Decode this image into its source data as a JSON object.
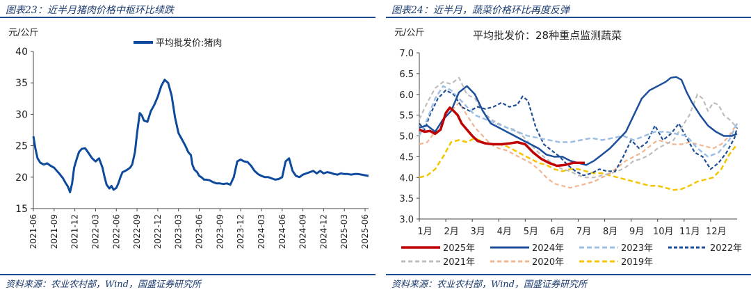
{
  "left_panel": {
    "figure_title": "图表23：近半月猪肉价格中枢环比续跌",
    "source": "资料来源：农业农村部，Wind，国盛证券研究所"
  },
  "right_panel": {
    "figure_title": "图表24：近半月，蔬菜价格环比再度反弹",
    "source": "资料来源：农业农村部，Wind，国盛证券研究所"
  },
  "colors": {
    "rule": "#1a4c92",
    "left_line": "#0d4a9c",
    "2025年": "#c00000",
    "2024年": "#1c4e9c",
    "2023年": "#9dbfe3",
    "2022年": "#1f4e96",
    "2021年": "#bdbdbd",
    "2020年": "#f2b48f",
    "2019年": "#f5c400"
  },
  "chart_data": [
    {
      "type": "line",
      "title": "",
      "unit_label": "元/公斤",
      "xlabel": "",
      "ylabel": "",
      "ylim": [
        15,
        40
      ],
      "y_ticks": [
        15,
        20,
        25,
        30,
        35,
        40
      ],
      "x_ticks": [
        "2021-06",
        "2021-09",
        "2021-12",
        "2022-03",
        "2022-06",
        "2022-09",
        "2022-12",
        "2023-03",
        "2023-06",
        "2023-09",
        "2023-12",
        "2024-03",
        "2024-06",
        "2024-09",
        "2024-12",
        "2025-03",
        "2025-06"
      ],
      "legend_position": "top-center",
      "series": [
        {
          "name": "平均批发价:猪肉",
          "x": [
            0,
            0.3,
            0.6,
            1,
            1.5,
            2,
            2.5,
            3,
            3.4,
            3.8,
            4.3,
            4.7,
            5,
            5.3,
            5.6,
            5.9,
            6.3,
            6.6,
            7,
            7.5,
            8,
            8.5,
            9,
            9.5,
            10,
            10.3,
            10.6,
            11,
            11.3,
            11.6,
            12,
            12.3,
            12.6,
            12.9,
            13.3,
            13.6,
            14,
            14.3,
            14.7,
            15,
            15.4,
            15.7,
            16,
            16.5,
            17,
            17.5,
            18,
            18.5,
            19,
            19.5,
            20,
            20.5,
            21,
            21.5,
            22,
            22.4,
            22.8,
            23,
            23.3,
            23.7,
            24,
            24.3,
            24.7,
            25,
            25.5,
            26,
            26.5,
            27,
            27.5,
            28,
            28.5,
            29,
            29.5,
            30,
            30.5,
            31,
            31.5,
            32,
            32.5,
            33,
            33.5,
            34,
            34.5,
            35,
            35.5,
            36,
            36.5,
            37,
            37.5,
            38,
            38.5,
            39,
            39.5,
            40,
            40.5,
            41,
            41.5,
            42,
            42.5,
            43,
            43.5,
            44,
            44.5,
            45,
            45.5,
            46,
            46.5,
            47,
            47.5,
            48,
            48.5
          ],
          "values": [
            26.5,
            24.5,
            23.0,
            22.3,
            22.0,
            22.2,
            21.8,
            21.5,
            21.0,
            20.5,
            19.8,
            19.0,
            18.5,
            17.6,
            19.0,
            21.5,
            23.0,
            24.0,
            24.5,
            24.6,
            23.8,
            23.0,
            22.5,
            23.0,
            21.5,
            20.0,
            18.8,
            18.2,
            18.6,
            18.0,
            18.3,
            19.0,
            20.0,
            20.8,
            21.0,
            21.2,
            21.5,
            22.0,
            24.0,
            27.0,
            30.2,
            29.8,
            29.0,
            28.8,
            30.5,
            31.5,
            32.8,
            34.5,
            35.5,
            35.0,
            33.0,
            29.5,
            27.0,
            26.0,
            25.0,
            24.0,
            23.5,
            22.0,
            21.2,
            20.8,
            20.2,
            20.0,
            19.6,
            19.6,
            19.5,
            19.2,
            19.0,
            19.0,
            18.9,
            19.0,
            18.8,
            20.0,
            22.5,
            22.8,
            22.5,
            22.4,
            21.8,
            21.0,
            20.5,
            20.2,
            20.0,
            20.0,
            19.8,
            19.6,
            19.7,
            20.0,
            22.5,
            23.0,
            21.0,
            20.2,
            20.0,
            20.4,
            20.6,
            20.8,
            21.0,
            20.6,
            21.0,
            20.6,
            20.8,
            20.7,
            20.5,
            20.4,
            20.6,
            20.5,
            20.5,
            20.4,
            20.5,
            20.5,
            20.4,
            20.3,
            20.2
          ]
        }
      ]
    },
    {
      "type": "line",
      "title": "平均批发价：28种重点监测蔬菜",
      "unit_label": "元/公斤",
      "xlabel": "",
      "ylabel": "",
      "ylim": [
        3.0,
        7.0
      ],
      "y_ticks": [
        "3.0",
        "3.5",
        "4.0",
        "4.5",
        "5.0",
        "5.5",
        "6.0",
        "6.5",
        "7.0"
      ],
      "categories": [
        "1月",
        "2月",
        "3月",
        "4月",
        "5月",
        "6月",
        "7月",
        "8月",
        "9月",
        "10月",
        "11月",
        "12月"
      ],
      "xlim": [
        0,
        12
      ],
      "legend_position": "bottom",
      "series": [
        {
          "name": "2025年",
          "x": [
            0,
            0.2,
            0.4,
            0.6,
            0.8,
            1,
            1.15,
            1.3,
            1.45,
            1.6,
            1.8,
            2,
            2.2,
            2.5,
            2.8,
            3.1,
            3.4,
            3.7,
            4,
            4.3,
            4.6,
            4.9,
            5.2,
            5.5,
            5.8,
            6.1,
            6.25
          ],
          "values": [
            5.15,
            5.1,
            5.12,
            5.05,
            5.15,
            5.55,
            5.68,
            5.6,
            5.5,
            5.3,
            5.15,
            5.0,
            4.88,
            4.82,
            4.8,
            4.8,
            4.82,
            4.85,
            4.8,
            4.6,
            4.45,
            4.35,
            4.28,
            4.3,
            4.35,
            4.35,
            4.35
          ]
        },
        {
          "name": "2024年",
          "x": [
            0,
            0.3,
            0.6,
            0.9,
            1.2,
            1.5,
            1.8,
            2.1,
            2.4,
            2.7,
            3,
            3.3,
            3.6,
            3.9,
            4.2,
            4.5,
            4.8,
            5.1,
            5.4,
            5.7,
            6,
            6.3,
            6.6,
            6.9,
            7.2,
            7.5,
            7.8,
            8.1,
            8.4,
            8.7,
            9,
            9.3,
            9.5,
            9.7,
            9.9,
            10.1,
            10.3,
            10.6,
            10.9,
            11.2,
            11.5,
            11.8,
            12
          ],
          "values": [
            5.2,
            5.25,
            5.1,
            5.4,
            5.6,
            6.05,
            6.2,
            6.0,
            5.6,
            5.3,
            5.2,
            5.1,
            5.0,
            4.9,
            4.8,
            4.7,
            4.55,
            4.5,
            4.5,
            4.4,
            4.35,
            4.3,
            4.4,
            4.55,
            4.7,
            4.9,
            5.1,
            5.5,
            5.9,
            6.1,
            6.2,
            6.3,
            6.4,
            6.42,
            6.35,
            6.05,
            5.8,
            5.5,
            5.25,
            5.1,
            5.0,
            5.0,
            5.05
          ]
        },
        {
          "name": "2023年",
          "x": [
            0,
            0.3,
            0.6,
            0.9,
            1.2,
            1.5,
            1.8,
            2.1,
            2.5,
            2.9,
            3.3,
            3.7,
            4.1,
            4.5,
            4.9,
            5.3,
            5.7,
            6.1,
            6.5,
            6.9,
            7.3,
            7.7,
            8.1,
            8.5,
            8.9,
            9.3,
            9.7,
            10.1,
            10.5,
            10.9,
            11.3,
            11.7,
            12
          ],
          "values": [
            5.0,
            5.4,
            5.9,
            6.2,
            6.1,
            5.9,
            5.7,
            5.5,
            5.4,
            5.3,
            5.2,
            5.1,
            5.0,
            4.95,
            4.9,
            4.85,
            4.85,
            4.9,
            4.95,
            4.9,
            4.95,
            5.0,
            4.9,
            5.0,
            5.1,
            5.1,
            5.05,
            5.0,
            4.7,
            4.5,
            4.6,
            4.9,
            5.3
          ]
        },
        {
          "name": "2022年",
          "x": [
            0,
            0.2,
            0.4,
            0.7,
            1,
            1.3,
            1.6,
            1.9,
            2.2,
            2.5,
            2.8,
            3.1,
            3.4,
            3.7,
            3.9,
            4.1,
            4.4,
            4.7,
            5,
            5.3,
            5.6,
            5.9,
            6.2,
            6.5,
            6.8,
            7.1,
            7.4,
            7.7,
            8,
            8.3,
            8.6,
            8.9,
            9.2,
            9.5,
            9.8,
            10.1,
            10.4,
            10.7,
            11,
            11.3,
            11.6,
            11.9,
            12
          ],
          "values": [
            5.3,
            5.15,
            5.5,
            5.9,
            6.1,
            6.0,
            5.7,
            5.6,
            5.7,
            5.65,
            5.7,
            5.8,
            5.7,
            5.75,
            5.95,
            5.85,
            5.2,
            4.8,
            4.65,
            4.5,
            4.3,
            4.15,
            4.05,
            4.1,
            4.2,
            4.15,
            4.15,
            4.5,
            4.9,
            4.7,
            4.85,
            5.25,
            4.9,
            5.05,
            5.3,
            4.95,
            4.6,
            4.5,
            4.2,
            4.35,
            4.6,
            4.95,
            5.2
          ]
        },
        {
          "name": "2021年",
          "x": [
            0,
            0.3,
            0.6,
            0.9,
            1.2,
            1.5,
            1.8,
            2.1,
            2.4,
            2.7,
            3,
            3.3,
            3.6,
            3.9,
            4.2,
            4.5,
            4.8,
            5.1,
            5.4,
            5.7,
            6,
            6.3,
            6.6,
            6.9,
            7.2,
            7.5,
            7.8,
            8.1,
            8.4,
            8.7,
            9,
            9.3,
            9.6,
            9.9,
            10.2,
            10.5,
            10.7,
            10.9,
            11.1,
            11.3,
            11.5,
            11.7,
            12
          ],
          "values": [
            5.4,
            5.8,
            6.15,
            6.3,
            6.25,
            6.4,
            6.0,
            5.9,
            5.6,
            5.4,
            5.3,
            5.2,
            5.15,
            5.0,
            4.8,
            4.6,
            4.45,
            4.3,
            4.2,
            4.15,
            4.05,
            4.0,
            4.0,
            4.05,
            4.1,
            4.15,
            4.25,
            4.4,
            4.45,
            4.55,
            4.7,
            4.8,
            4.9,
            5.2,
            5.5,
            6.0,
            5.9,
            5.6,
            5.8,
            5.75,
            5.5,
            5.4,
            5.2
          ]
        },
        {
          "name": "2020年",
          "x": [
            0,
            0.3,
            0.6,
            0.9,
            1.2,
            1.5,
            1.8,
            2.1,
            2.4,
            2.7,
            3,
            3.3,
            3.6,
            3.9,
            4.2,
            4.5,
            4.8,
            5.1,
            5.4,
            5.7,
            6,
            6.3,
            6.6,
            6.9,
            7.2,
            7.5,
            7.8,
            8.1,
            8.4,
            8.7,
            9,
            9.3,
            9.6,
            9.9,
            10.2,
            10.5,
            10.8,
            11.1,
            11.4,
            11.7,
            12
          ],
          "values": [
            4.8,
            4.85,
            5.1,
            5.4,
            5.6,
            5.8,
            5.5,
            5.2,
            5.0,
            4.8,
            4.7,
            4.65,
            4.55,
            4.45,
            4.35,
            4.2,
            4.0,
            3.85,
            3.8,
            3.75,
            3.8,
            3.85,
            3.9,
            4.0,
            4.1,
            4.25,
            4.4,
            4.5,
            4.6,
            4.75,
            4.9,
            4.85,
            4.8,
            4.8,
            4.85,
            4.8,
            4.75,
            4.7,
            4.8,
            5.0,
            5.3
          ]
        },
        {
          "name": "2019年",
          "x": [
            0,
            0.3,
            0.6,
            0.9,
            1.2,
            1.5,
            1.8,
            2.1,
            2.4,
            2.7,
            3,
            3.3,
            3.6,
            3.9,
            4.2,
            4.5,
            4.8,
            5.1,
            5.4,
            5.7,
            6,
            6.3,
            6.6,
            6.9,
            7.2,
            7.5,
            7.8,
            8.1,
            8.4,
            8.7,
            9,
            9.3,
            9.6,
            9.9,
            10.2,
            10.5,
            10.8,
            11.1,
            11.4,
            11.7,
            12
          ],
          "values": [
            4.0,
            4.05,
            4.2,
            4.5,
            4.85,
            4.9,
            4.85,
            4.95,
            4.85,
            4.8,
            4.8,
            4.75,
            4.65,
            4.55,
            4.45,
            4.35,
            4.3,
            4.2,
            4.15,
            4.2,
            4.2,
            4.15,
            4.1,
            4.1,
            4.05,
            4.0,
            3.95,
            3.9,
            3.85,
            3.8,
            3.8,
            3.75,
            3.7,
            3.72,
            3.8,
            3.9,
            3.95,
            4.0,
            4.2,
            4.55,
            4.8
          ]
        }
      ]
    }
  ]
}
